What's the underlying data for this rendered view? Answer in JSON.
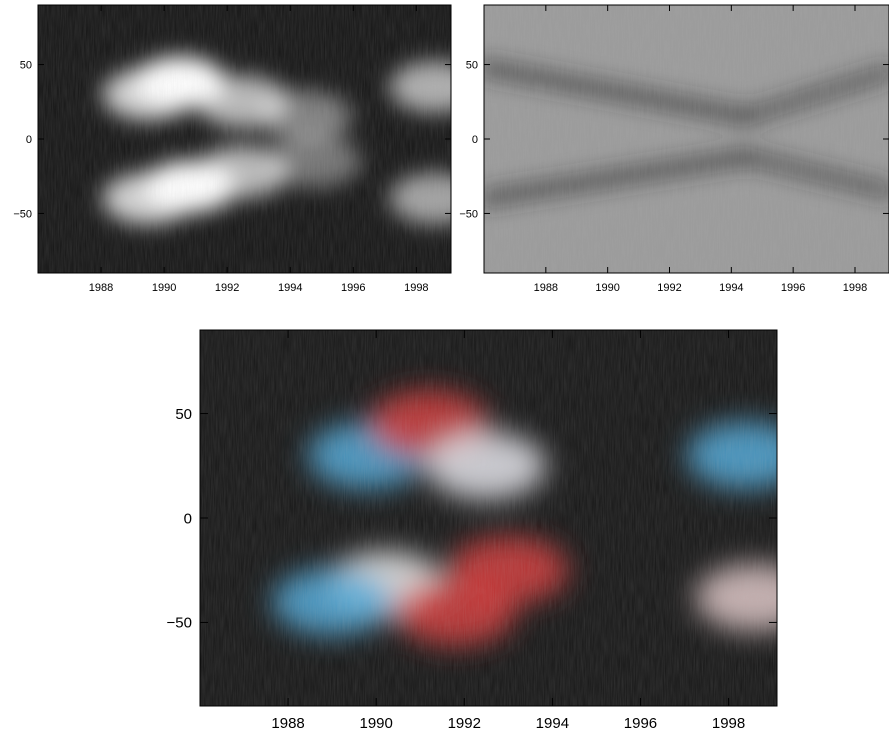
{
  "chart_data": [
    {
      "id": "top-left",
      "type": "heatmap",
      "colormap": "grayscale",
      "x_range": [
        1986,
        1999.1
      ],
      "y_range": [
        -90,
        90
      ],
      "xticks": [
        1988,
        1990,
        1992,
        1994,
        1996,
        1998
      ],
      "xtick_labels": [
        "1988",
        "1990",
        "1992",
        "1994",
        "1996",
        "1998"
      ],
      "yticks": [
        50,
        0,
        -50
      ],
      "ytick_labels": [
        "50",
        "0",
        "−50"
      ],
      "grid": false,
      "features": [
        {
          "x": 1990.5,
          "y": 38,
          "intensity": 1.0
        },
        {
          "x": 1989.5,
          "y": 30,
          "intensity": 0.8
        },
        {
          "x": 1992.5,
          "y": 25,
          "intensity": 0.7
        },
        {
          "x": 1994.5,
          "y": 15,
          "intensity": 0.45
        },
        {
          "x": 1990.8,
          "y": -32,
          "intensity": 1.0
        },
        {
          "x": 1989.5,
          "y": -40,
          "intensity": 0.8
        },
        {
          "x": 1992.5,
          "y": -22,
          "intensity": 0.7
        },
        {
          "x": 1994.8,
          "y": -15,
          "intensity": 0.4
        },
        {
          "x": 1998.6,
          "y": 35,
          "intensity": 0.65
        },
        {
          "x": 1998.6,
          "y": -40,
          "intensity": 0.6
        }
      ]
    },
    {
      "id": "top-right",
      "type": "heatmap",
      "colormap": "grayscale",
      "x_range": [
        1986,
        1999.1
      ],
      "y_range": [
        -90,
        90
      ],
      "xticks": [
        1988,
        1990,
        1992,
        1994,
        1996,
        1998
      ],
      "xtick_labels": [
        "1988",
        "1990",
        "1992",
        "1994",
        "1996",
        "1998"
      ],
      "yticks": [
        50,
        0,
        -50
      ],
      "ytick_labels": [
        "50",
        "0",
        "−50"
      ],
      "grid": false,
      "features": [
        {
          "x1": 1986,
          "y1": 48,
          "x2": 1994.5,
          "y2": 15,
          "intensity": 0.8
        },
        {
          "x1": 1994.5,
          "y1": 15,
          "x2": 1999.1,
          "y2": 45,
          "intensity": 0.7
        },
        {
          "x1": 1986,
          "y1": -40,
          "x2": 1994.5,
          "y2": -12,
          "intensity": 0.8
        },
        {
          "x1": 1994.5,
          "y1": -12,
          "x2": 1999.1,
          "y2": -35,
          "intensity": 0.7
        }
      ]
    },
    {
      "id": "bottom",
      "type": "heatmap",
      "colormap": "red-blue on black",
      "x_range": [
        1986,
        1999.1
      ],
      "y_range": [
        -90,
        90
      ],
      "xticks": [
        1988,
        1990,
        1992,
        1994,
        1996,
        1998
      ],
      "xtick_labels": [
        "1988",
        "1990",
        "1992",
        "1994",
        "1996",
        "1998"
      ],
      "yticks": [
        50,
        0,
        -50
      ],
      "ytick_labels": [
        "50",
        "0",
        "−50"
      ],
      "grid": false,
      "features": [
        {
          "x": 1989.8,
          "y": 30,
          "color": "#4fa8d8"
        },
        {
          "x": 1991.2,
          "y": 45,
          "color": "#d23a3a"
        },
        {
          "x": 1992.5,
          "y": 25,
          "color": "#e8e8ee"
        },
        {
          "x": 1990.2,
          "y": -32,
          "color": "#f0f0f0"
        },
        {
          "x": 1989.0,
          "y": -40,
          "color": "#4fa8d8"
        },
        {
          "x": 1991.8,
          "y": -45,
          "color": "#d23a3a"
        },
        {
          "x": 1993.0,
          "y": -25,
          "color": "#d23a3a"
        },
        {
          "x": 1998.4,
          "y": 30,
          "color": "#4fa8d8"
        },
        {
          "x": 1998.6,
          "y": -38,
          "color": "#e0c8c8"
        }
      ]
    }
  ]
}
